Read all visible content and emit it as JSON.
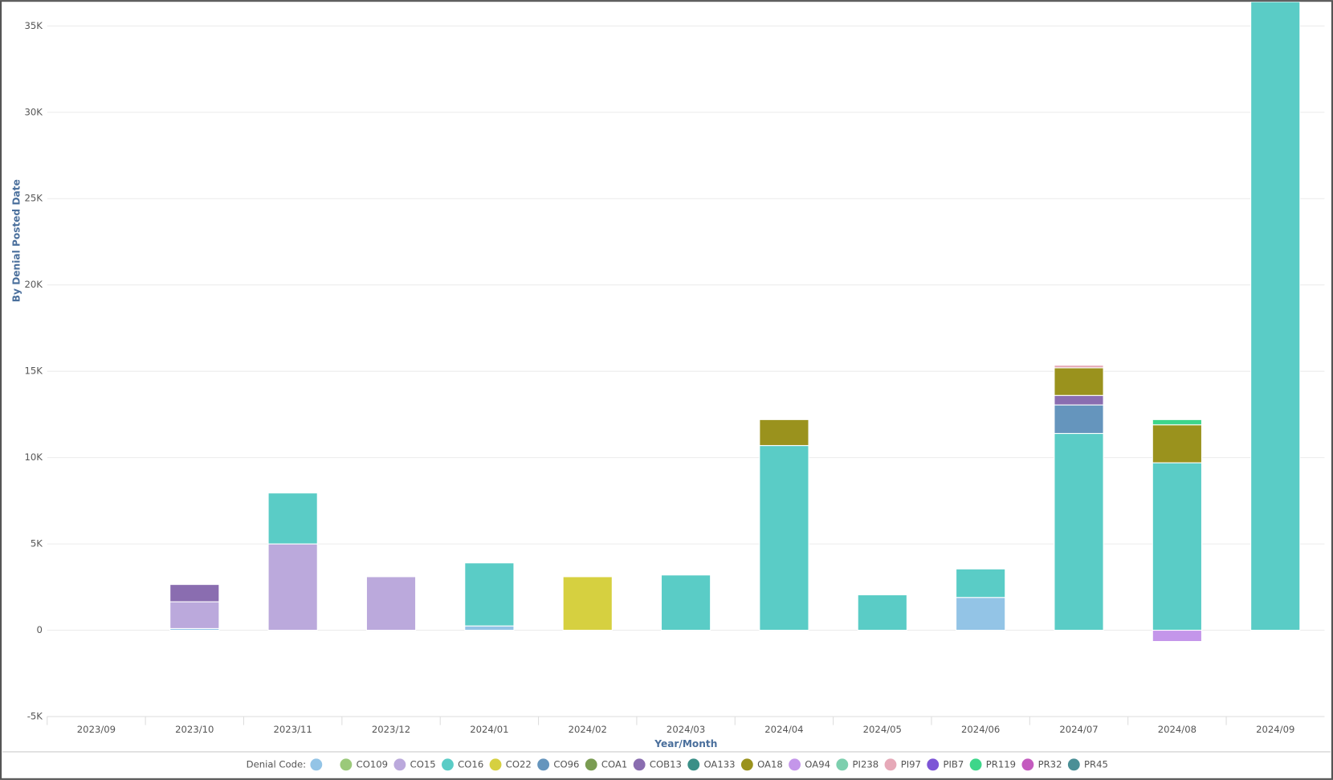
{
  "chart_data": {
    "type": "stacked_bar",
    "y_label": "By Denial Posted Date",
    "x_label": "Year/Month",
    "legend_title": "Denial Code:",
    "categories": [
      "2023/09",
      "2023/10",
      "2023/11",
      "2023/12",
      "2024/01",
      "2024/02",
      "2024/03",
      "2024/04",
      "2024/05",
      "2024/06",
      "2024/07",
      "2024/08",
      "2024/09"
    ],
    "ylim": [
      -5000,
      36400
    ],
    "yticks": [
      {
        "value": -5000,
        "label": "-5K"
      },
      0,
      {
        "value": 5000,
        "label": "5K"
      },
      {
        "value": 10000,
        "label": "10K"
      },
      {
        "value": 15000,
        "label": "15K"
      },
      {
        "value": 20000,
        "label": "20K"
      },
      {
        "value": 25000,
        "label": "25K"
      },
      {
        "value": 30000,
        "label": "30K"
      },
      {
        "value": 35000,
        "label": "35K"
      }
    ],
    "grid": true,
    "series": [
      {
        "name": null,
        "color": "#93c4e6",
        "values": [
          null,
          100,
          null,
          null,
          250,
          null,
          null,
          null,
          null,
          1900,
          null,
          null,
          null
        ]
      },
      {
        "name": "CO109",
        "color": "#9bc97a",
        "values": [
          null,
          null,
          null,
          null,
          null,
          null,
          null,
          null,
          null,
          null,
          null,
          null,
          null
        ]
      },
      {
        "name": "CO15",
        "color": "#bba9dc",
        "values": [
          null,
          1550,
          5000,
          3100,
          null,
          null,
          null,
          null,
          null,
          null,
          null,
          null,
          null
        ]
      },
      {
        "name": "CO16",
        "color": "#5accc6",
        "values": [
          null,
          null,
          2950,
          null,
          3650,
          null,
          3200,
          10700,
          2050,
          1650,
          11400,
          9700,
          36400
        ]
      },
      {
        "name": "CO22",
        "color": "#d6d040",
        "values": [
          null,
          null,
          null,
          null,
          null,
          3100,
          null,
          null,
          null,
          null,
          null,
          null,
          null
        ]
      },
      {
        "name": "CO96",
        "color": "#6595bd",
        "values": [
          null,
          null,
          null,
          null,
          null,
          null,
          null,
          null,
          null,
          null,
          1650,
          null,
          null
        ]
      },
      {
        "name": "COA1",
        "color": "#7a9c52",
        "values": [
          null,
          null,
          null,
          null,
          null,
          null,
          null,
          null,
          null,
          null,
          null,
          null,
          null
        ]
      },
      {
        "name": "COB13",
        "color": "#8a6db0",
        "values": [
          null,
          1000,
          null,
          null,
          null,
          null,
          null,
          null,
          null,
          null,
          550,
          null,
          null
        ]
      },
      {
        "name": "OA133",
        "color": "#3a8f87",
        "values": [
          null,
          null,
          null,
          null,
          null,
          null,
          null,
          null,
          null,
          null,
          null,
          null,
          null
        ]
      },
      {
        "name": "OA18",
        "color": "#9a921d",
        "values": [
          null,
          null,
          null,
          null,
          null,
          null,
          null,
          1500,
          null,
          null,
          1600,
          2200,
          null
        ]
      },
      {
        "name": "OA94",
        "color": "#c496ea",
        "values": [
          null,
          null,
          null,
          null,
          null,
          null,
          null,
          null,
          null,
          null,
          null,
          -650,
          null
        ]
      },
      {
        "name": "PI238",
        "color": "#7dcfae",
        "values": [
          null,
          null,
          null,
          null,
          null,
          null,
          null,
          null,
          null,
          null,
          null,
          null,
          null
        ]
      },
      {
        "name": "PI97",
        "color": "#e6a9b8",
        "values": [
          null,
          null,
          null,
          null,
          null,
          null,
          null,
          null,
          null,
          null,
          150,
          null,
          null
        ]
      },
      {
        "name": "PIB7",
        "color": "#7d55d6",
        "values": [
          null,
          null,
          null,
          null,
          null,
          null,
          null,
          null,
          null,
          null,
          null,
          null,
          null
        ]
      },
      {
        "name": "PR119",
        "color": "#3dd68a",
        "values": [
          null,
          null,
          null,
          null,
          null,
          null,
          null,
          null,
          null,
          null,
          null,
          300,
          null
        ]
      },
      {
        "name": "PR32",
        "color": "#c45bbf",
        "values": [
          null,
          null,
          null,
          null,
          null,
          null,
          null,
          null,
          null,
          null,
          null,
          null,
          null
        ]
      },
      {
        "name": "PR45",
        "color": "#4a8f96",
        "values": [
          null,
          null,
          null,
          null,
          null,
          null,
          null,
          null,
          null,
          null,
          null,
          null,
          null
        ]
      }
    ]
  }
}
